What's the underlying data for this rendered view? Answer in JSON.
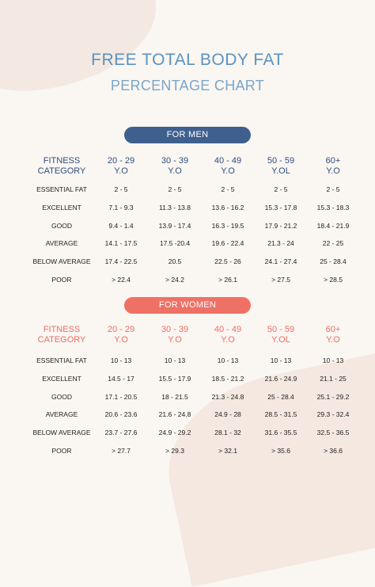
{
  "title_line1": "FREE TOTAL BODY FAT",
  "title_line2": "PERCENTAGE CHART",
  "men": {
    "label": "FOR MEN",
    "headers": [
      [
        "FITNESS",
        "CATEGORY"
      ],
      [
        "20 - 29",
        "Y.O"
      ],
      [
        "30 - 39",
        "Y.O"
      ],
      [
        "40 - 49",
        "Y.O"
      ],
      [
        "50 - 59",
        "Y.OL"
      ],
      [
        "60+",
        "Y.O"
      ]
    ],
    "rows": [
      [
        "ESSENTIAL FAT",
        "2 - 5",
        "2 - 5",
        "2 - 5",
        "2 - 5",
        "2 - 5"
      ],
      [
        "EXCELLENT",
        "7.1 - 9.3",
        "11.3 - 13.8",
        "13.6 - 16.2",
        "15.3 - 17.8",
        "15.3 - 18.3"
      ],
      [
        "GOOD",
        "9.4 - 1.4",
        "13.9 - 17.4",
        "16.3 - 19.5",
        "17.9 - 21.2",
        "18.4 - 21.9"
      ],
      [
        "AVERAGE",
        "14.1 - 17.5",
        "17.5 -20.4",
        "19.6 - 22.4",
        "21.3 - 24",
        "22 - 25"
      ],
      [
        "BELOW AVERAGE",
        "17.4 - 22.5",
        "20.5",
        "22.5 - 26",
        "24.1 - 27.4",
        "25 - 28.4"
      ],
      [
        "POOR",
        "> 22.4",
        "> 24.2",
        "> 26.1",
        "> 27.5",
        "> 28.5"
      ]
    ]
  },
  "women": {
    "label": "FOR WOMEN",
    "headers": [
      [
        "FITNESS",
        "CATEGORY"
      ],
      [
        "20 - 29",
        "Y.O"
      ],
      [
        "30 - 39",
        "Y.O"
      ],
      [
        "40 - 49",
        "Y.O"
      ],
      [
        "50 - 59",
        "Y.OL"
      ],
      [
        "60+",
        "Y.O"
      ]
    ],
    "rows": [
      [
        "ESSENTIAL FAT",
        "10 - 13",
        "10 - 13",
        "10 - 13",
        "10 - 13",
        "10 - 13"
      ],
      [
        "EXCELLENT",
        "14.5 - 17",
        "15.5 - 17.9",
        "18.5 - 21.2",
        "21.6 - 24.9",
        "21.1 - 25"
      ],
      [
        "GOOD",
        "17.1 - 20.5",
        "18 - 21.5",
        "21.3 - 24.8",
        "25 - 28.4",
        "25.1 - 29.2"
      ],
      [
        "AVERAGE",
        "20.6 - 23.6",
        "21.6 - 24.8",
        "24.9 - 28",
        "28.5 - 31.5",
        "29.3 - 32.4"
      ],
      [
        "BELOW AVERAGE",
        "23.7 - 27.6",
        "24.9 - 29.2",
        "28.1 - 32",
        "31.6 - 35.5",
        "32.5 - 36.5"
      ],
      [
        "POOR",
        "> 27.7",
        "> 29.3",
        "> 32.1",
        "> 35.6",
        "> 36.6"
      ]
    ]
  }
}
